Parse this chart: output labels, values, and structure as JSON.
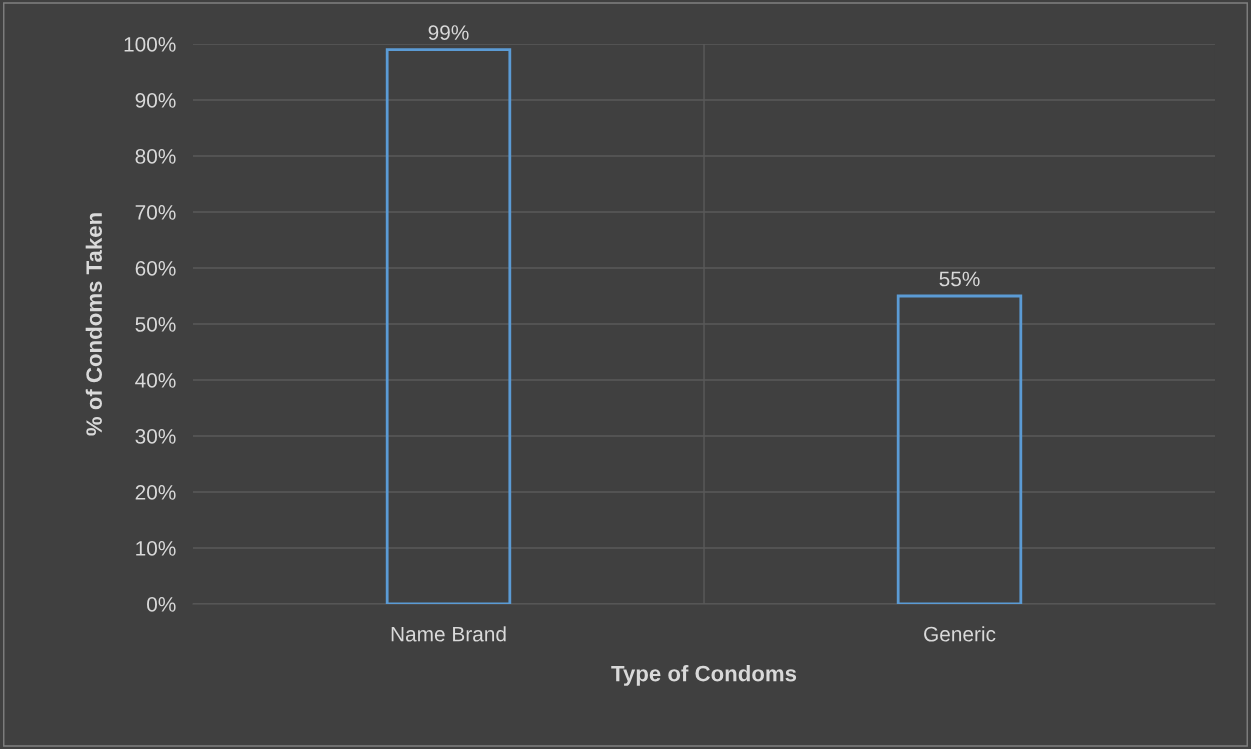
{
  "chart_data": {
    "type": "bar",
    "xlabel": "Type of Condoms",
    "ylabel": "% of Condoms Taken",
    "categories": [
      "Name Brand",
      "Generic"
    ],
    "values": [
      99,
      55
    ],
    "color": "#5b9bd5",
    "value_labels": [
      "99%",
      "55%"
    ],
    "ylim": [
      0,
      100
    ],
    "yticks": [
      {
        "value": 0,
        "label": "0%"
      },
      {
        "value": 10,
        "label": "10%"
      },
      {
        "value": 20,
        "label": "20%"
      },
      {
        "value": 30,
        "label": "30%"
      },
      {
        "value": 40,
        "label": "40%"
      },
      {
        "value": 50,
        "label": "50%"
      },
      {
        "value": 60,
        "label": "60%"
      },
      {
        "value": 70,
        "label": "70%"
      },
      {
        "value": 80,
        "label": "80%"
      },
      {
        "value": 90,
        "label": "90%"
      },
      {
        "value": 100,
        "label": "100%"
      }
    ],
    "grid": true
  }
}
